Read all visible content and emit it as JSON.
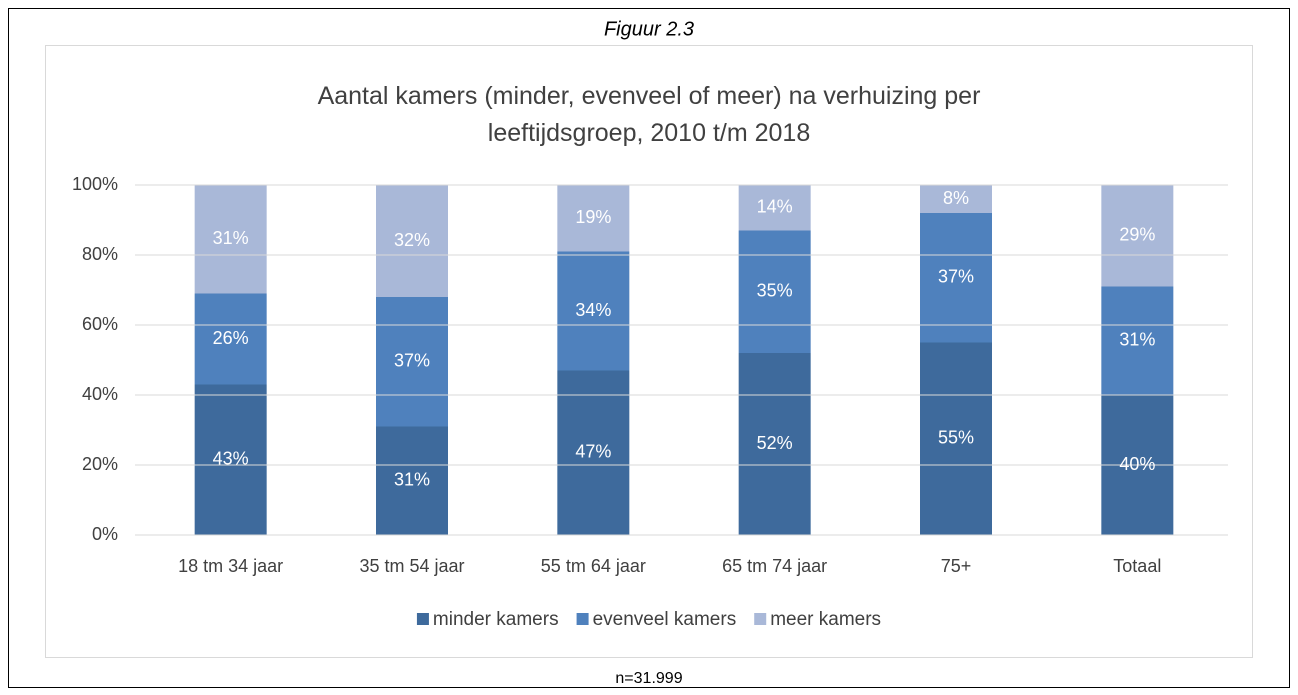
{
  "figure_label": "Figuur 2.3",
  "note": "n=31.999",
  "chart_data": {
    "type": "stacked_bar",
    "title": "Aantal kamers (minder, evenveel of meer) na verhuizing per leeftijdsgroep, 2010 t/m 2018",
    "categories": [
      "18 tm 34 jaar",
      "35 tm 54 jaar",
      "55 tm 64 jaar",
      "65 tm 74 jaar",
      "75+",
      "Totaal"
    ],
    "series": [
      {
        "name": "minder kamers",
        "color": "#3e6a9c",
        "values": [
          43,
          31,
          47,
          52,
          55,
          40
        ],
        "value_labels": [
          "43%",
          "31%",
          "47%",
          "52%",
          "55%",
          "40%"
        ]
      },
      {
        "name": "evenveel kamers",
        "color": "#4f81bd",
        "values": [
          26,
          37,
          34,
          35,
          37,
          31
        ],
        "value_labels": [
          "26%",
          "37%",
          "34%",
          "35%",
          "37%",
          "31%"
        ]
      },
      {
        "name": "meer kamers",
        "color": "#a9b8d8",
        "values": [
          31,
          32,
          19,
          14,
          8,
          29
        ],
        "value_labels": [
          "31%",
          "32%",
          "19%",
          "14%",
          "8%",
          "29%"
        ]
      }
    ],
    "ylim": [
      0,
      100
    ],
    "yticks": [
      {
        "value": 0,
        "label": "0%"
      },
      {
        "value": 20,
        "label": "20%"
      },
      {
        "value": 40,
        "label": "40%"
      },
      {
        "value": 60,
        "label": "60%"
      },
      {
        "value": 80,
        "label": "80%"
      },
      {
        "value": 100,
        "label": "100%"
      }
    ],
    "grid": true,
    "legend": "bottom"
  }
}
